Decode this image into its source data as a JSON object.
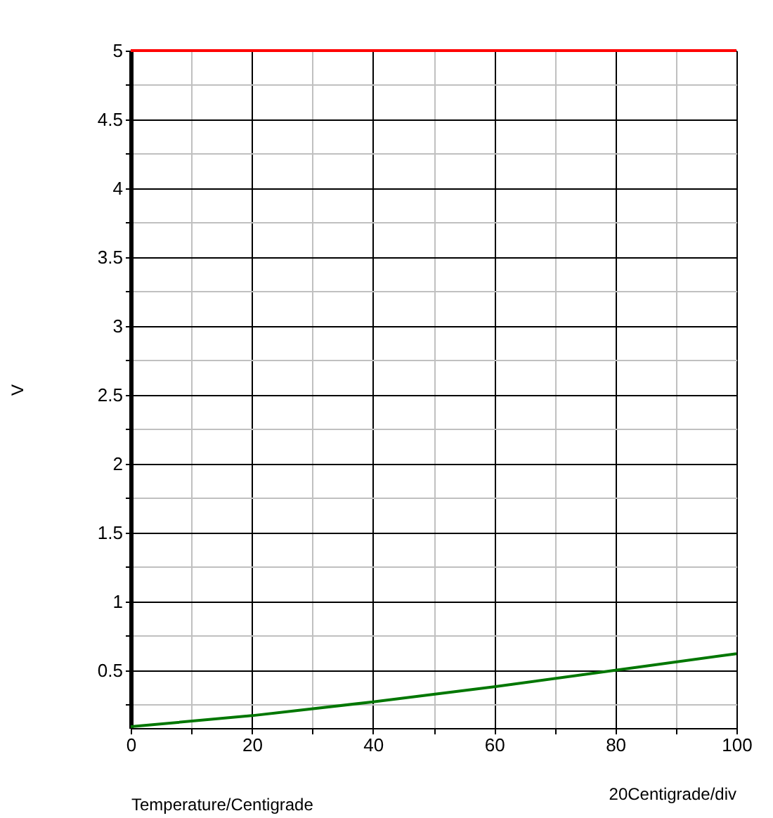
{
  "chart_data": {
    "type": "line",
    "xlabel": "Temperature/Centigrade",
    "ylabel": "V",
    "annotations": [
      "20Centigrade/div"
    ],
    "xlim": [
      0,
      100
    ],
    "ylim": [
      0.08,
      5
    ],
    "xticks": [
      0,
      {
        "value": 10,
        "label": null
      },
      20,
      {
        "value": 30,
        "label": null
      },
      40,
      {
        "value": 50,
        "label": null
      },
      60,
      {
        "value": 70,
        "label": null
      },
      80,
      {
        "value": 90,
        "label": null
      },
      100
    ],
    "yticks": [
      {
        "value": 0.25,
        "label": null
      },
      0.5,
      {
        "value": 0.75,
        "label": null
      },
      1,
      {
        "value": 1.25,
        "label": null
      },
      1.5,
      {
        "value": 1.75,
        "label": null
      },
      2,
      {
        "value": 2.25,
        "label": null
      },
      2.5,
      {
        "value": 2.75,
        "label": null
      },
      3,
      {
        "value": 3.25,
        "label": null
      },
      3.5,
      {
        "value": 3.75,
        "label": null
      },
      4,
      {
        "value": 4.25,
        "label": null
      },
      4.5,
      {
        "value": 4.75,
        "label": null
      },
      5
    ],
    "x": [
      0,
      20,
      40,
      60,
      80,
      100
    ],
    "series": [
      {
        "color": "#ff0000",
        "values": [
          5,
          5,
          5,
          5,
          5,
          5
        ]
      },
      {
        "color": "#007700",
        "values": [
          0.09,
          0.17,
          0.27,
          0.38,
          0.5,
          0.62
        ]
      }
    ],
    "grid": true,
    "legend": false,
    "marker": "none",
    "line_style": "solid"
  }
}
